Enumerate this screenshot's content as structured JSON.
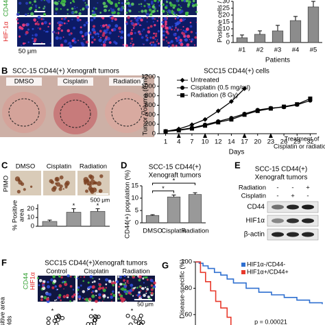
{
  "figure": {
    "panel_labels": [
      "B",
      "C",
      "D",
      "E",
      "F",
      "G"
    ],
    "a": {
      "stains": [
        "CD44",
        "HIF-1α"
      ],
      "scale_bar": "50 μm"
    },
    "b": {
      "title": "SCC-15 CD44(+) Xenograft tumors",
      "groups": [
        "DMSO",
        "Cisplatin",
        "Radiation"
      ]
    },
    "c": {
      "stain": "PIMO",
      "scale_bar": "500 μm"
    },
    "e": {
      "title": [
        "SCC-15 CD44(+)",
        "Xenograft tumors"
      ],
      "treatments": [
        {
          "name": "Radiation",
          "signs": [
            "-",
            "-",
            "+"
          ]
        },
        {
          "name": "Cisplatin",
          "signs": [
            "-",
            "+",
            "-"
          ]
        }
      ],
      "blots": [
        "CD44",
        "HIF1α",
        "β-actin"
      ]
    },
    "f": {
      "title": "SCC15 CD44(+)Xenograft tumors",
      "groups": [
        "Control",
        "Cisplatin",
        "Radiation"
      ],
      "stains": [
        "CD44",
        "HIF1α"
      ],
      "scale_bar": "50 μm",
      "y_label": [
        "Positive area",
        "/ fields"
      ],
      "significance": [
        "*",
        "*",
        "*"
      ]
    }
  },
  "chart_data": [
    {
      "type": "bar",
      "y_label": "Positive cells / field",
      "x_label": "Patients",
      "categories": [
        "#1",
        "#2",
        "#3",
        "#4",
        "#5"
      ],
      "values": [
        3.5,
        6,
        8.5,
        16,
        26
      ],
      "errors": [
        2,
        2.5,
        4,
        3,
        4
      ],
      "color": "#8c8c8c",
      "ylim": [
        0,
        30
      ],
      "yticks": [
        0,
        5,
        10,
        15,
        20,
        25,
        30
      ]
    },
    {
      "type": "line",
      "title": "SCC15 CD44(+) cells",
      "y_label": "Tumor Volume (mm³)",
      "x_label": "Days",
      "categories": [
        "1",
        "4",
        "7",
        "10",
        "12",
        "14",
        "17",
        "20",
        "23",
        "26",
        "29",
        "32"
      ],
      "series": [
        {
          "name": "Untreated",
          "color": "#000000",
          "marker": "diamond",
          "values": [
            50,
            100,
            190,
            300,
            480,
            680,
            950,
            null,
            null,
            null,
            null,
            null
          ]
        },
        {
          "name": "Cisplatin (0.5 mg/ml)",
          "color": "#000000",
          "marker": "circle",
          "values": [
            50,
            80,
            120,
            190,
            260,
            330,
            420,
            500,
            540,
            560,
            610,
            700
          ]
        },
        {
          "name": "Radiation (8 Gy)",
          "color": "#000000",
          "marker": "square",
          "values": [
            50,
            70,
            110,
            170,
            240,
            300,
            400,
            480,
            530,
            570,
            620,
            740
          ]
        }
      ],
      "ylim": [
        0,
        1200
      ],
      "yticks": [
        0,
        200,
        400,
        600,
        800,
        1000,
        1200
      ],
      "legend": "upper left",
      "annotation": [
        "Treatment of",
        "Cisplatin or radiation"
      ]
    },
    {
      "type": "bar",
      "y_label": [
        "% Positive",
        "area"
      ],
      "categories": [
        "DMSO",
        "Cisplatin",
        "Radiation"
      ],
      "values": [
        5.5,
        16,
        17
      ],
      "errors": [
        1.5,
        4,
        3
      ],
      "color": "#999999",
      "ylim": [
        0,
        25
      ],
      "yticks": [
        0,
        10,
        20
      ],
      "significance": [
        {
          "category": "Cisplatin",
          "label": "*"
        },
        {
          "category": "Radiation",
          "label": "*"
        }
      ]
    },
    {
      "type": "bar",
      "title": [
        "SCC-15 CD44(+)",
        "Xenograft tumors"
      ],
      "y_label": "CD44(+) population (%)",
      "categories": [
        "DMSO",
        "Cisplatin",
        "Radiation"
      ],
      "values": [
        3,
        10.5,
        11.5
      ],
      "errors": [
        0.3,
        0.8,
        0.7
      ],
      "color": "#999999",
      "ylim": [
        0,
        15
      ],
      "yticks": [
        0,
        5,
        10,
        15
      ],
      "brackets": [
        {
          "from": "DMSO",
          "to": "Cisplatin",
          "label": "*"
        },
        {
          "from": "DMSO",
          "to": "Radiation",
          "label": "*"
        }
      ]
    },
    {
      "type": "step",
      "y_label": "Disease-specific (%)",
      "series": [
        {
          "name": "HIF1α-/CD44-",
          "color": "#2e6fd0",
          "x": [
            0,
            3,
            6,
            10,
            15,
            20,
            25,
            30,
            40,
            50,
            60,
            70,
            80,
            90,
            100
          ],
          "values": [
            100,
            99,
            97,
            95,
            92,
            90,
            87,
            84,
            80,
            77,
            75,
            73,
            71,
            69,
            68
          ]
        },
        {
          "name": "HIF1α+/CD44+",
          "color": "#e8392b",
          "x": [
            0,
            4,
            8,
            12,
            16,
            20,
            25,
            28
          ],
          "values": [
            100,
            92,
            85,
            78,
            70,
            65,
            58,
            52
          ]
        }
      ],
      "xlim": [
        0,
        100
      ],
      "ylim": [
        50,
        100
      ],
      "yticks": [
        60,
        80,
        100
      ],
      "legend": "upper right",
      "annotation": "p = 0.00021"
    }
  ]
}
